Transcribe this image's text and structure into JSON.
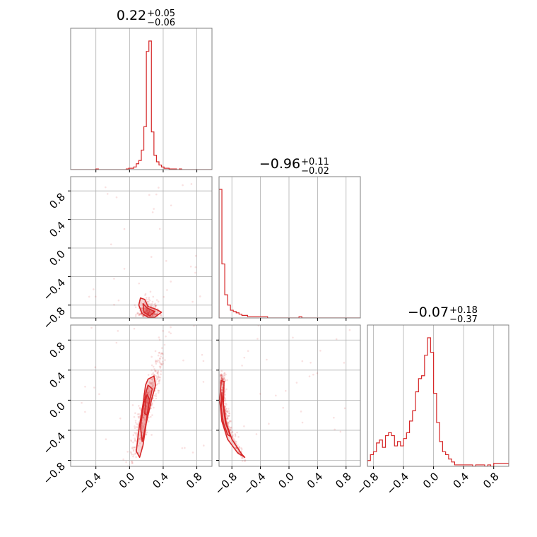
{
  "chart_data": {
    "type": "corner",
    "grid": true,
    "color": "#d62728",
    "parameters": [
      {
        "title": {
          "median": "0.22",
          "plus": "+0.05",
          "minus": "−0.06"
        },
        "range": [
          -0.7,
          0.98
        ],
        "hist": {
          "edges_start": -0.7,
          "bin_width": 0.03,
          "counts": [
            0,
            0,
            0,
            0,
            0,
            0,
            0,
            0,
            0,
            0,
            1,
            0,
            0,
            0,
            0,
            0,
            0,
            0,
            0,
            0,
            0,
            0,
            1,
            2,
            2,
            4,
            9,
            14,
            30,
            66,
            182,
            198,
            58,
            22,
            12,
            7,
            4,
            2,
            2,
            1,
            1,
            1,
            0,
            1,
            0,
            0,
            0,
            0,
            0,
            0,
            0,
            0,
            0,
            0,
            0,
            0
          ]
        }
      },
      {
        "title": {
          "median": "−0.96",
          "plus": "+0.11",
          "minus": "−0.02"
        },
        "range": [
          -0.98,
          1.0
        ],
        "hist": {
          "edges_start": -0.98,
          "bin_width": 0.04,
          "counts": [
            100,
            42,
            18,
            10,
            6,
            5,
            4,
            3,
            2,
            2,
            1,
            1,
            1,
            1,
            1,
            1,
            1,
            0,
            0,
            0,
            0,
            0,
            0,
            0,
            0,
            0,
            0,
            0,
            1,
            0,
            0,
            0,
            0,
            0,
            0,
            0,
            0,
            0,
            0,
            0,
            0,
            0,
            0,
            0,
            0,
            0,
            0,
            0,
            0,
            0,
            0
          ]
        }
      },
      {
        "title": {
          "median": "−0.07",
          "plus": "+0.18",
          "minus": "−0.37"
        },
        "range": [
          -0.88,
          1.0
        ],
        "hist": {
          "edges_start": -0.88,
          "bin_width": 0.04,
          "counts": [
            4,
            8,
            10,
            16,
            18,
            13,
            21,
            23,
            21,
            14,
            17,
            14,
            19,
            23,
            31,
            38,
            51,
            60,
            62,
            76,
            88,
            78,
            50,
            30,
            17,
            10,
            8,
            5,
            3,
            1,
            1,
            1,
            1,
            1,
            1,
            0,
            1,
            1,
            1,
            0,
            1,
            0,
            2,
            2,
            2,
            2,
            2
          ]
        }
      }
    ],
    "ticks": {
      "x0": [
        -0.4,
        0.0,
        0.4,
        0.8
      ],
      "x1": [
        -0.8,
        -0.4,
        0.0,
        0.4,
        0.8
      ],
      "x2": [
        -0.8,
        -0.4,
        0.0,
        0.4,
        0.8
      ],
      "y1": [
        -0.8,
        -0.4,
        0.0,
        0.4,
        0.8
      ],
      "y2": [
        -0.8,
        -0.4,
        0.0,
        0.4,
        0.8
      ]
    },
    "scatter": [
      {
        "pair": [
          0,
          1
        ],
        "cluster": {
          "x_mean": 0.22,
          "x_sd": 0.06,
          "y_base": -0.96,
          "y_scale": 0.1,
          "n": 320
        },
        "contours": [
          [
            [
              0.13,
              -0.7
            ],
            [
              0.18,
              -0.72
            ],
            [
              0.22,
              -0.82
            ],
            [
              0.32,
              -0.86
            ],
            [
              0.38,
              -0.9
            ],
            [
              0.3,
              -0.97
            ],
            [
              0.22,
              -0.97
            ],
            [
              0.15,
              -0.92
            ],
            [
              0.11,
              -0.8
            ]
          ],
          [
            [
              0.16,
              -0.78
            ],
            [
              0.21,
              -0.84
            ],
            [
              0.3,
              -0.89
            ],
            [
              0.24,
              -0.95
            ],
            [
              0.17,
              -0.9
            ]
          ]
        ]
      },
      {
        "pair": [
          0,
          2
        ],
        "cluster": {
          "slope": 4.0,
          "x_center": 0.2,
          "y_center": -0.1,
          "x_sd": 0.04,
          "y_spread": 0.38,
          "n": 420
        },
        "contours": [
          [
            [
              0.22,
              0.28
            ],
            [
              0.29,
              0.32
            ],
            [
              0.31,
              0.2
            ],
            [
              0.26,
              0.0
            ],
            [
              0.2,
              -0.3
            ],
            [
              0.16,
              -0.6
            ],
            [
              0.12,
              -0.76
            ],
            [
              0.08,
              -0.68
            ],
            [
              0.11,
              -0.4
            ],
            [
              0.16,
              -0.05
            ],
            [
              0.19,
              0.2
            ]
          ],
          [
            [
              0.22,
              0.2
            ],
            [
              0.27,
              0.15
            ],
            [
              0.23,
              -0.05
            ],
            [
              0.19,
              -0.35
            ],
            [
              0.15,
              -0.55
            ],
            [
              0.13,
              -0.35
            ],
            [
              0.17,
              -0.05
            ],
            [
              0.2,
              0.12
            ]
          ],
          [
            [
              0.21,
              0.08
            ],
            [
              0.24,
              0.0
            ],
            [
              0.21,
              -0.2
            ],
            [
              0.18,
              -0.18
            ],
            [
              0.19,
              0.0
            ]
          ]
        ]
      },
      {
        "pair": [
          1,
          2
        ],
        "cluster": {
          "curve": true,
          "n": 320
        },
        "contours": [
          [
            [
              -0.95,
              0.26
            ],
            [
              -0.91,
              0.25
            ],
            [
              -0.92,
              -0.05
            ],
            [
              -0.88,
              -0.3
            ],
            [
              -0.8,
              -0.52
            ],
            [
              -0.66,
              -0.72
            ],
            [
              -0.62,
              -0.76
            ],
            [
              -0.72,
              -0.7
            ],
            [
              -0.86,
              -0.52
            ],
            [
              -0.94,
              -0.28
            ],
            [
              -0.97,
              0.0
            ]
          ],
          [
            [
              -0.94,
              0.1
            ],
            [
              -0.92,
              -0.1
            ],
            [
              -0.89,
              -0.3
            ],
            [
              -0.82,
              -0.48
            ],
            [
              -0.86,
              -0.46
            ],
            [
              -0.92,
              -0.3
            ],
            [
              -0.95,
              -0.1
            ]
          ]
        ]
      }
    ]
  }
}
